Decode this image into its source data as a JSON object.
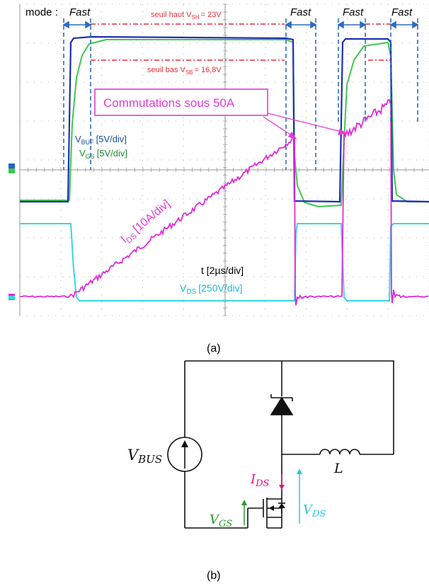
{
  "panel_a": {
    "mode_label": "mode :",
    "fast_labels": [
      "Fast",
      "Fast",
      "Fast",
      "Fast"
    ],
    "threshold_high": {
      "text": "seuil haut V",
      "sub": "SH",
      "value": "= 23V"
    },
    "threshold_low": {
      "text": "seuil bas V",
      "sub": "SB",
      "value": "= 16,8V"
    },
    "commutation_label": "Commutations sous 50A",
    "vbuf_label": {
      "main": "V",
      "sub": "BUF",
      "scale": "[5V/div]"
    },
    "vgs_label": {
      "main": "V",
      "sub": "GS",
      "scale": "[5V/div]"
    },
    "ids_label": {
      "main": "I",
      "sub": "DS",
      "scale": "[10A/div]"
    },
    "time_label": "t [2µs/div]",
    "vds_label": {
      "main": "V",
      "sub": "DS",
      "scale": "[250V/div]"
    },
    "caption": "(a)"
  },
  "panel_b": {
    "vbus": {
      "main": "V",
      "sub": "BUS"
    },
    "inductor": "L",
    "ids": {
      "main": "I",
      "sub": "DS"
    },
    "vds": {
      "main": "V",
      "sub": "DS"
    },
    "vgs": {
      "main": "V",
      "sub": "GS"
    },
    "caption": "(b)"
  },
  "colors": {
    "scope_bg": "#ffffff",
    "grid": "#9a9a9a",
    "vbuf": "#1f2fb0",
    "vgs": "#3cc84c",
    "ids": "#e02ad8",
    "vds": "#36d7e0",
    "threshold": "#e0303a",
    "fast_marker": "#2d6cc0",
    "annotation": "#e23ad8",
    "circuit_line": "#111111",
    "ids_label": "#e0157a",
    "vds_label": "#2fc8d6",
    "vgs_label": "#2a9a2a",
    "label_vbuf": "#1a4fa0",
    "label_vgs": "#1e8f2e",
    "label_vds_scope": "#1fb8d6"
  }
}
